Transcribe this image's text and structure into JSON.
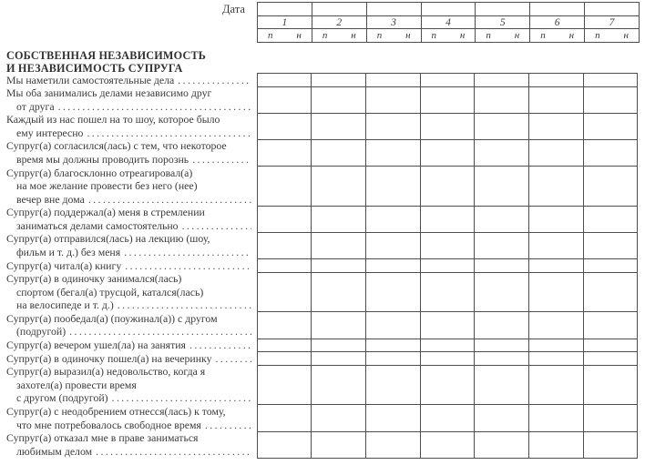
{
  "colors": {
    "text": "#3b3b3b",
    "grid_line": "#4e4e4e",
    "background": "#ffffff"
  },
  "document": {
    "date_label": "Дата",
    "day_numbers": [
      "1",
      "2",
      "3",
      "4",
      "5",
      "6",
      "7"
    ],
    "subcolumn_labels": {
      "left": "п",
      "right": "н"
    },
    "section_title_lines": [
      "СОБСТВЕННАЯ НЕЗАВИСИМОСТЬ",
      "И НЕЗАВИСИМОСТЬ СУПРУГА"
    ],
    "items": [
      {
        "lines": [
          "Мы наметили самостоятельные дела"
        ]
      },
      {
        "lines": [
          "Мы оба занимались делами независимо друг",
          "от друга"
        ]
      },
      {
        "lines": [
          "Каждый из нас пошел на то шоу, которое было",
          "ему интересно"
        ]
      },
      {
        "lines": [
          "Супруг(а) согласился(лась) с тем, что некоторое",
          "время мы должны проводить порознь"
        ]
      },
      {
        "lines": [
          "Супруг(а) благосклонно отреагировал(а)",
          "на мое желание провести без него (нее)",
          "вечер вне дома"
        ]
      },
      {
        "lines": [
          "Супруг(а) поддержал(а) меня в стремлении",
          "заниматься делами самостоятельно"
        ]
      },
      {
        "lines": [
          "Супруг(а) отправился(лась) на лекцию (шоу,",
          "фильм и т. д.) без меня"
        ]
      },
      {
        "lines": [
          "Супруг(а) читал(а) книгу"
        ]
      },
      {
        "lines": [
          "Супруг(а) в одиночку занимался(лась)",
          "спортом (бегал(а) трусцой, катался(лась)",
          "на велосипеде и т. д.)"
        ]
      },
      {
        "lines": [
          "Супруг(а) пообедал(а) (поужинал(а)) с другом",
          "(подругой)"
        ]
      },
      {
        "lines": [
          "Супруг(а) вечером ушел(ла) на занятия"
        ]
      },
      {
        "lines": [
          "Супруг(а) в одиночку пошел(а) на вечеринку"
        ]
      },
      {
        "lines": [
          "Супруг(а) выразил(а) недовольство, когда я",
          "захотел(а) провести время",
          "с другом (подругой)"
        ]
      },
      {
        "lines": [
          "Супруг(а) с неодобрением отнесся(лась) к тому,",
          "что мне потребовалось свободное время"
        ]
      },
      {
        "lines": [
          "Супруг(а) отказал мне в праве заниматься",
          "любимым делом"
        ]
      }
    ]
  }
}
